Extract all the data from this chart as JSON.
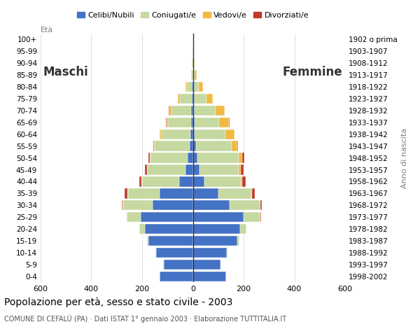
{
  "age_groups": [
    "0-4",
    "5-9",
    "10-14",
    "15-19",
    "20-24",
    "25-29",
    "30-34",
    "35-39",
    "40-44",
    "45-49",
    "50-54",
    "55-59",
    "60-64",
    "65-69",
    "70-74",
    "75-79",
    "80-84",
    "85-89",
    "90-94",
    "95-99",
    "100+"
  ],
  "birth_years": [
    "1998-2002",
    "1993-1997",
    "1988-1992",
    "1983-1987",
    "1978-1982",
    "1973-1977",
    "1968-1972",
    "1963-1967",
    "1958-1962",
    "1953-1957",
    "1948-1952",
    "1943-1947",
    "1938-1942",
    "1933-1937",
    "1928-1932",
    "1923-1927",
    "1918-1922",
    "1913-1917",
    "1908-1912",
    "1903-1907",
    "1902 o prima"
  ],
  "males": {
    "celibi": [
      130,
      115,
      145,
      175,
      190,
      205,
      160,
      130,
      55,
      30,
      20,
      12,
      10,
      8,
      8,
      5,
      3,
      0,
      0,
      0,
      0
    ],
    "coniugati": [
      0,
      1,
      2,
      5,
      20,
      55,
      115,
      125,
      145,
      150,
      148,
      138,
      115,
      90,
      75,
      45,
      20,
      6,
      3,
      1,
      0
    ],
    "vedovi": [
      0,
      0,
      0,
      0,
      0,
      0,
      1,
      2,
      2,
      2,
      2,
      2,
      5,
      5,
      10,
      8,
      5,
      2,
      1,
      0,
      0
    ],
    "divorziati": [
      0,
      0,
      0,
      0,
      1,
      2,
      5,
      12,
      10,
      8,
      5,
      3,
      2,
      2,
      1,
      0,
      0,
      0,
      0,
      0,
      0
    ]
  },
  "females": {
    "celibi": [
      130,
      110,
      135,
      175,
      185,
      200,
      145,
      100,
      45,
      25,
      18,
      12,
      8,
      8,
      5,
      3,
      2,
      0,
      0,
      0,
      0
    ],
    "coniugati": [
      0,
      1,
      2,
      8,
      25,
      65,
      120,
      130,
      145,
      155,
      162,
      142,
      120,
      95,
      85,
      50,
      22,
      8,
      4,
      1,
      0
    ],
    "vedovi": [
      0,
      0,
      0,
      0,
      0,
      1,
      2,
      3,
      5,
      10,
      15,
      20,
      35,
      40,
      35,
      25,
      15,
      8,
      4,
      1,
      0
    ],
    "divorziati": [
      0,
      0,
      0,
      0,
      1,
      2,
      5,
      10,
      12,
      10,
      8,
      3,
      2,
      1,
      0,
      0,
      0,
      0,
      0,
      0,
      0
    ]
  },
  "colors": {
    "celibi": "#4472c4",
    "coniugati": "#c5d9a0",
    "vedovi": "#f0b942",
    "divorziati": "#c0392b"
  },
  "xlim": 600,
  "title": "Popolazione per età, sesso e stato civile - 2003",
  "subtitle": "COMUNE DI CEFALÙ (PA) · Dati ISTAT 1° gennaio 2003 · Elaborazione TUTTITALIA.IT",
  "legend_labels": [
    "Celibi/Nubili",
    "Coniugati/e",
    "Vedovi/e",
    "Divorziati/e"
  ],
  "ylabel_left": "Età",
  "ylabel_right": "Anno di nascita",
  "label_maschi": "Maschi",
  "label_femmine": "Femmine"
}
